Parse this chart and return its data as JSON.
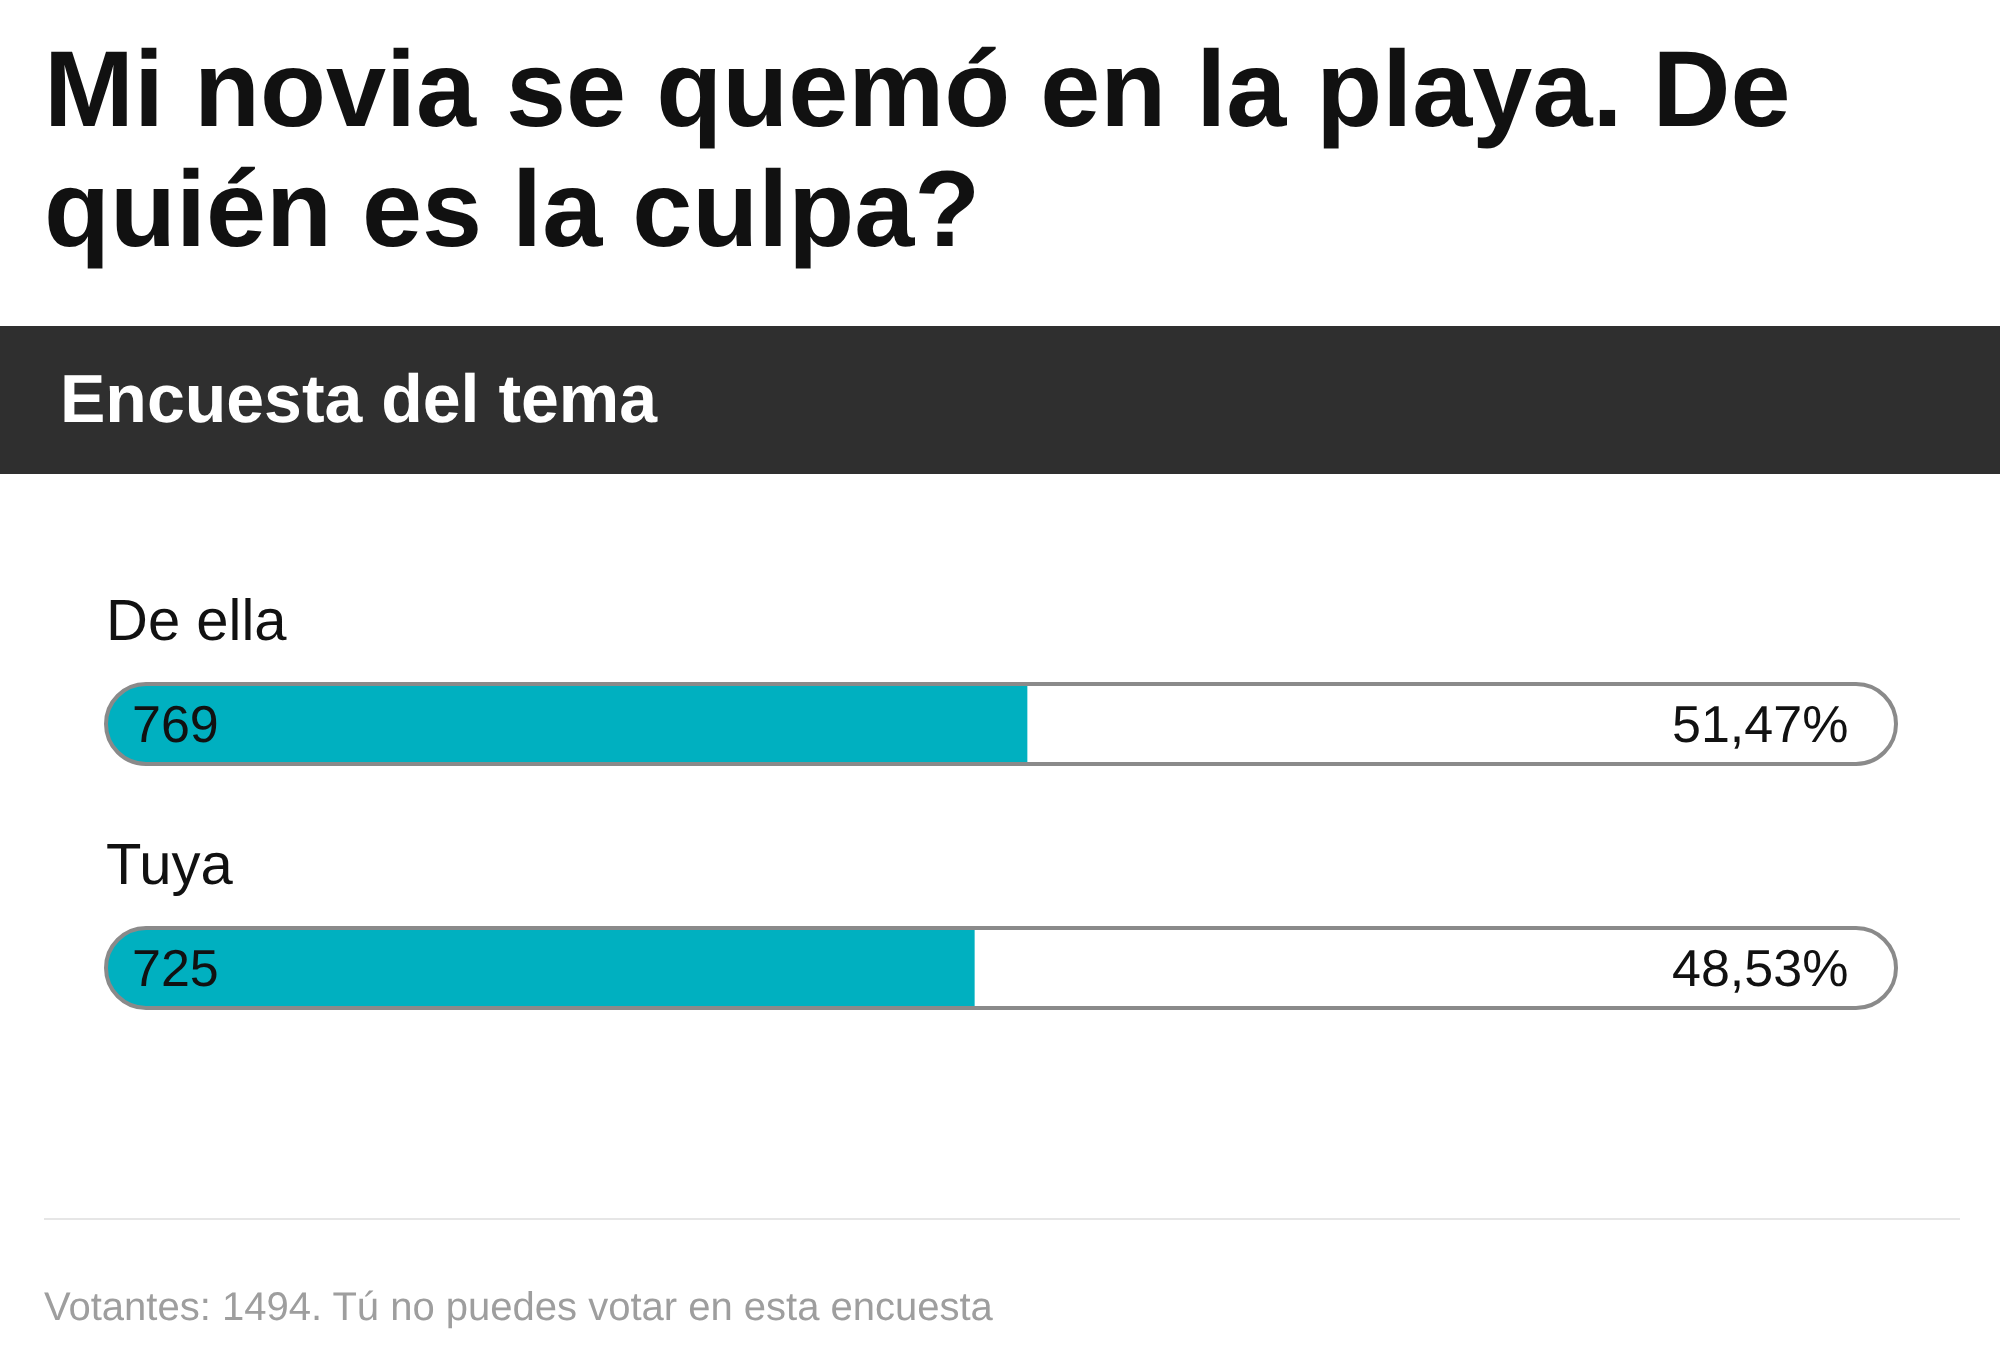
{
  "chart_data": {
    "type": "bar",
    "orientation": "horizontal",
    "title": "Mi novia se quemó en la playa. De quién es la culpa?",
    "subtitle": "Encuesta del tema",
    "categories": [
      "De ella",
      "Tuya"
    ],
    "values": [
      769,
      725
    ],
    "color": "#00b0c0",
    "xlim": [
      0,
      1494
    ],
    "data_labels": true,
    "tick_labels": "y",
    "annotations": [
      "51,47%",
      "48,53%",
      "Votantes: 1494. Tú no puedes votar en esta encuesta"
    ]
  }
}
